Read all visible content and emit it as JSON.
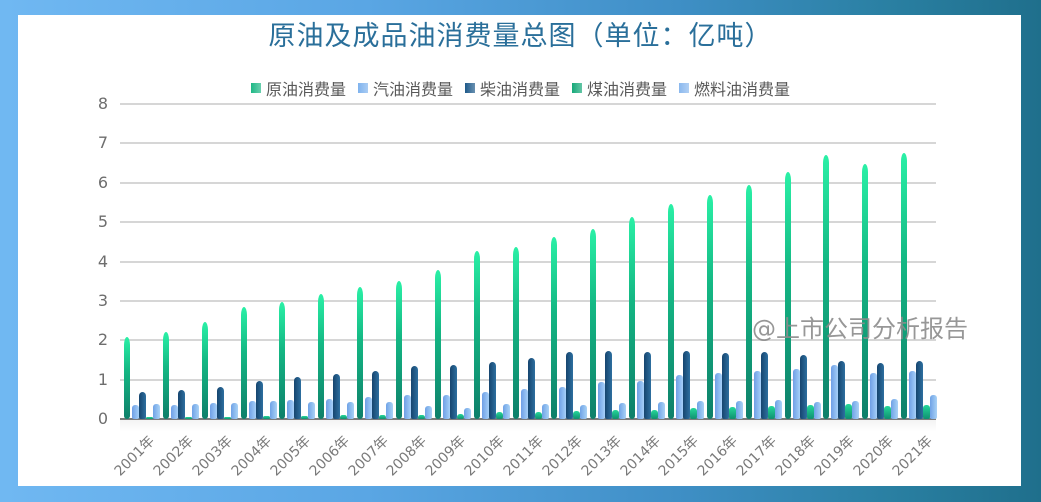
{
  "title": "原油及成品油消费量总图（单位：亿吨）",
  "watermark": "@上市公司分析报告",
  "legend": [
    {
      "label": "原油消费量",
      "color": "#1fb886"
    },
    {
      "label": "汽油消费量",
      "color": "#7fb3ee"
    },
    {
      "label": "柴油消费量",
      "color": "#1f5a8a"
    },
    {
      "label": "煤油消费量",
      "color": "#17a979"
    },
    {
      "label": "燃料油消费量",
      "color": "#8ab8ee"
    }
  ],
  "chart_data": {
    "type": "bar",
    "title": "原油及成品油消费量总图（单位：亿吨）",
    "xlabel": "",
    "ylabel": "",
    "ylim": [
      0,
      8
    ],
    "yticks": [
      0,
      1,
      2,
      3,
      4,
      5,
      6,
      7,
      8
    ],
    "grid": true,
    "legend_position": "top",
    "categories": [
      "2001年",
      "2002年",
      "2003年",
      "2004年",
      "2005年",
      "2006年",
      "2007年",
      "2008年",
      "2009年",
      "2010年",
      "2011年",
      "2012年",
      "2013年",
      "2014年",
      "2015年",
      "2016年",
      "2017年",
      "2018年",
      "2019年",
      "2020年",
      "2021年"
    ],
    "series": [
      {
        "name": "原油消费量",
        "values": [
          2.08,
          2.22,
          2.46,
          2.84,
          2.98,
          3.18,
          3.35,
          3.5,
          3.78,
          4.27,
          4.38,
          4.62,
          4.83,
          5.12,
          5.47,
          5.68,
          5.94,
          6.27,
          6.7,
          6.48,
          6.76
        ]
      },
      {
        "name": "汽油消费量",
        "values": [
          0.35,
          0.35,
          0.4,
          0.46,
          0.48,
          0.52,
          0.56,
          0.62,
          0.62,
          0.69,
          0.75,
          0.81,
          0.93,
          0.97,
          1.13,
          1.17,
          1.22,
          1.28,
          1.37,
          1.16,
          1.21
        ]
      },
      {
        "name": "柴油消费量",
        "values": [
          0.69,
          0.74,
          0.82,
          0.97,
          1.07,
          1.15,
          1.23,
          1.34,
          1.36,
          1.46,
          1.55,
          1.69,
          1.72,
          1.71,
          1.72,
          1.68,
          1.69,
          1.63,
          1.48,
          1.41,
          1.48
        ]
      },
      {
        "name": "煤油消费量",
        "values": [
          0.06,
          0.06,
          0.06,
          0.07,
          0.08,
          0.09,
          0.1,
          0.11,
          0.13,
          0.18,
          0.19,
          0.2,
          0.22,
          0.24,
          0.27,
          0.3,
          0.33,
          0.36,
          0.39,
          0.33,
          0.36
        ]
      },
      {
        "name": "燃料油消费量",
        "values": [
          0.38,
          0.38,
          0.4,
          0.46,
          0.42,
          0.43,
          0.42,
          0.33,
          0.29,
          0.38,
          0.37,
          0.36,
          0.4,
          0.43,
          0.46,
          0.46,
          0.47,
          0.43,
          0.46,
          0.5,
          0.62
        ]
      }
    ]
  }
}
